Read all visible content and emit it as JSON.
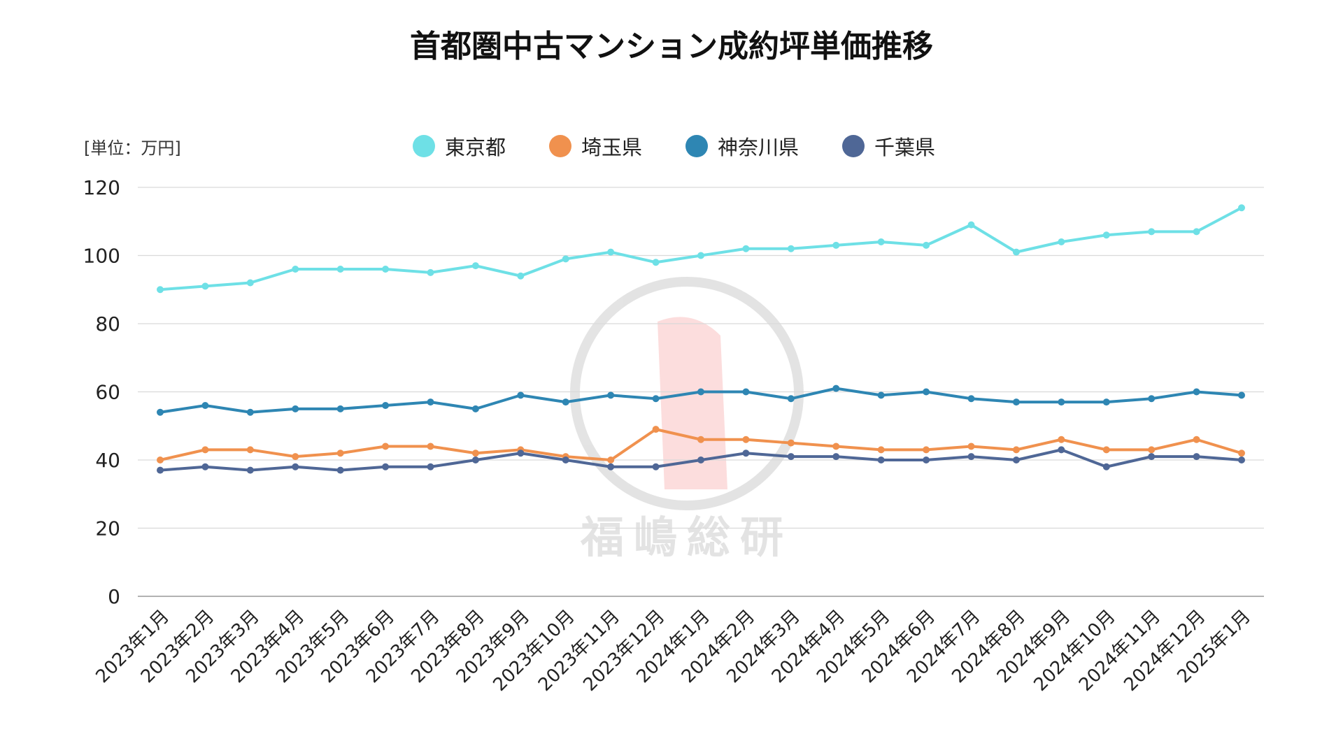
{
  "chart_data": {
    "type": "line",
    "title": "首都圏中古マンション成約坪単価推移",
    "unit_label": "[単位：万円]",
    "xlabel": "",
    "ylabel": "",
    "ylim": [
      0,
      120
    ],
    "yticks": [
      0,
      20,
      40,
      60,
      80,
      100,
      120
    ],
    "grid": true,
    "legend_position": "top-center",
    "categories": [
      "2023年1月",
      "2023年2月",
      "2023年3月",
      "2023年4月",
      "2023年5月",
      "2023年6月",
      "2023年7月",
      "2023年8月",
      "2023年9月",
      "2023年10月",
      "2023年11月",
      "2023年12月",
      "2024年1月",
      "2024年2月",
      "2024年3月",
      "2024年4月",
      "2024年5月",
      "2024年6月",
      "2024年7月",
      "2024年8月",
      "2024年9月",
      "2024年10月",
      "2024年11月",
      "2024年12月",
      "2025年1月"
    ],
    "series": [
      {
        "name": "東京都",
        "color": "#6ee0e6",
        "values": [
          90,
          91,
          92,
          96,
          96,
          96,
          95,
          97,
          94,
          99,
          101,
          98,
          100,
          102,
          102,
          103,
          104,
          103,
          109,
          101,
          104,
          106,
          107,
          107,
          114
        ]
      },
      {
        "name": "埼玉県",
        "color": "#f0914e",
        "values": [
          40,
          43,
          43,
          41,
          42,
          44,
          44,
          42,
          43,
          41,
          40,
          49,
          46,
          46,
          45,
          44,
          43,
          43,
          44,
          43,
          46,
          43,
          43,
          46,
          42
        ]
      },
      {
        "name": "神奈川県",
        "color": "#2e86b3",
        "values": [
          54,
          56,
          54,
          55,
          55,
          56,
          57,
          55,
          59,
          57,
          59,
          58,
          60,
          60,
          58,
          61,
          59,
          60,
          58,
          57,
          57,
          57,
          58,
          60,
          59
        ]
      },
      {
        "name": "千葉県",
        "color": "#4f6796",
        "values": [
          37,
          38,
          37,
          38,
          37,
          38,
          38,
          40,
          42,
          40,
          38,
          38,
          40,
          42,
          41,
          41,
          40,
          40,
          41,
          40,
          43,
          38,
          41,
          41,
          40
        ]
      }
    ]
  },
  "watermark": {
    "text": "福嶋総研"
  }
}
